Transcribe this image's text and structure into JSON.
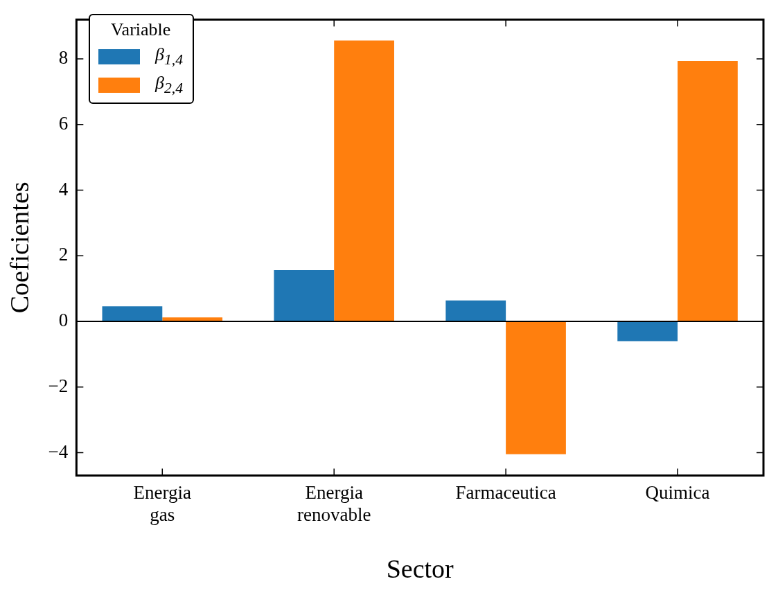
{
  "chart_data": {
    "type": "bar",
    "xlabel": "Sector",
    "ylabel": "Coeficientes",
    "legend_title": "Variable",
    "legend": "top left",
    "grid": false,
    "categories": [
      "Energia gas",
      "Energia renovable",
      "Farmaceutica",
      "Quimica"
    ],
    "series": [
      {
        "name": "β$_{1,4}$",
        "color": "#1f77b4",
        "values": [
          0.46,
          1.56,
          0.64,
          -0.6
        ]
      },
      {
        "name": "β$_{2,4}$",
        "color": "#ff7f0e",
        "values": [
          0.12,
          8.56,
          -4.05,
          7.94
        ]
      }
    ],
    "ylim": [
      -4.7,
      9.2
    ],
    "yticks": [
      {
        "value": -4,
        "label": "−4"
      },
      {
        "value": -2,
        "label": "−2"
      },
      0,
      2,
      4,
      6,
      8
    ],
    "ref_lines": [
      {
        "axis": "y",
        "value": 0,
        "color": "#000000"
      }
    ]
  }
}
